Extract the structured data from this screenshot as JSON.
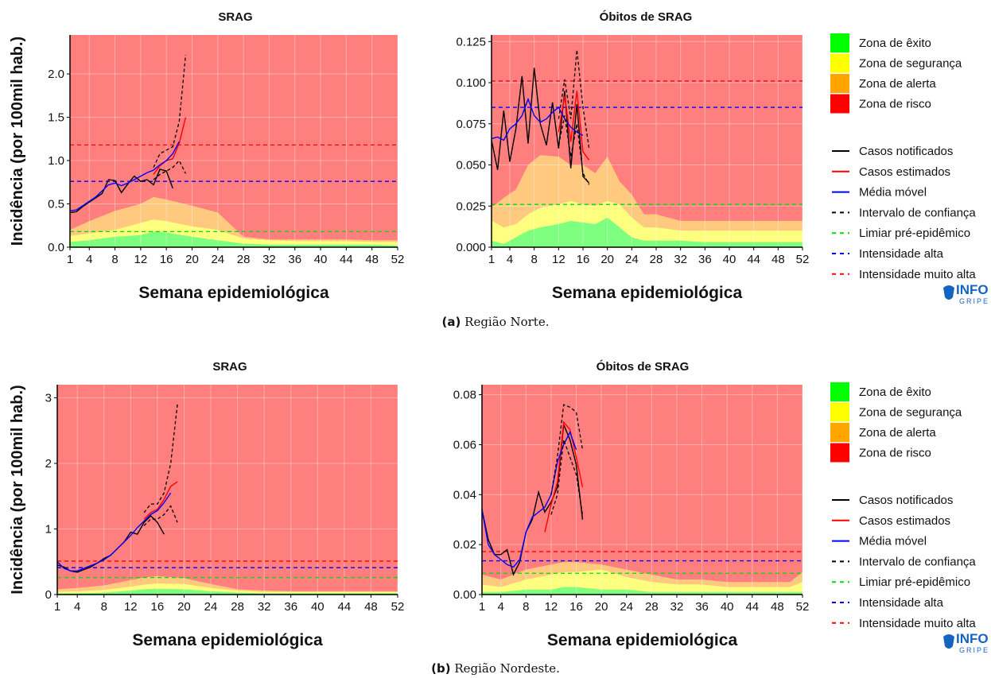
{
  "colors": {
    "risk_bg": "#ff7f7f",
    "alert": "#ffca7f",
    "safety": "#ffff7f",
    "success": "#7fff7f",
    "notified": "#000000",
    "estimated": "#ff0000",
    "moving_avg": "#0000ff",
    "ci": "#000000",
    "pre_epidemic": "#00dd00",
    "high": "#0000ff",
    "very_high": "#ff0000"
  },
  "legend": {
    "zones": [
      {
        "label": "Zona de êxito",
        "color": "#00ff00"
      },
      {
        "label": "Zona de segurança",
        "color": "#ffff00"
      },
      {
        "label": "Zona de alerta",
        "color": "#ffa500"
      },
      {
        "label": "Zona de risco",
        "color": "#ff0000"
      }
    ],
    "lines": [
      {
        "label": "Casos notificados",
        "color": "#000000",
        "dash": false
      },
      {
        "label": "Casos estimados",
        "color": "#ff0000",
        "dash": false
      },
      {
        "label": "Média móvel",
        "color": "#0000ff",
        "dash": false
      },
      {
        "label": "Intervalo de confiança",
        "color": "#000000",
        "dash": true
      },
      {
        "label": "Limiar pré-epidêmico",
        "color": "#00dd00",
        "dash": true
      },
      {
        "label": "Intensidade alta",
        "color": "#0000ff",
        "dash": true
      },
      {
        "label": "Intensidade muito alta",
        "color": "#ff0000",
        "dash": true
      }
    ],
    "logo": "INFO GRIPE"
  },
  "captions": [
    {
      "tag": "(a)",
      "text": "Região Norte."
    },
    {
      "tag": "(b)",
      "text": "Região Nordeste."
    }
  ],
  "chart_data": [
    {
      "type": "line",
      "title": "SRAG",
      "xlabel": "Semana epidemiológica",
      "ylabel": "Incidência (por 100mil hab.)",
      "xlim": [
        1,
        52
      ],
      "ylim": [
        0,
        2.45
      ],
      "xticks": [
        1,
        4,
        8,
        12,
        16,
        20,
        24,
        28,
        32,
        36,
        40,
        44,
        48,
        52
      ],
      "yticks": [
        0.0,
        0.5,
        1.0,
        1.5,
        2.0
      ],
      "ytick_labels": [
        "0.0",
        "0.5",
        "1.0",
        "1.5",
        "2.0"
      ],
      "thresholds": {
        "pre_epidemic": 0.18,
        "high": 0.76,
        "very_high": 1.18
      },
      "zone_weeks": [
        1,
        4,
        8,
        12,
        14,
        16,
        20,
        24,
        28,
        32,
        36,
        40,
        44,
        48,
        52
      ],
      "zone_success": [
        0.06,
        0.08,
        0.12,
        0.14,
        0.18,
        0.17,
        0.12,
        0.08,
        0.04,
        0.03,
        0.03,
        0.03,
        0.03,
        0.03,
        0.02
      ],
      "zone_safety": [
        0.13,
        0.16,
        0.2,
        0.28,
        0.32,
        0.3,
        0.24,
        0.2,
        0.1,
        0.08,
        0.07,
        0.07,
        0.07,
        0.06,
        0.06
      ],
      "zone_alert": [
        0.2,
        0.3,
        0.42,
        0.5,
        0.58,
        0.55,
        0.48,
        0.4,
        0.12,
        0.09,
        0.09,
        0.09,
        0.09,
        0.08,
        0.08
      ],
      "series": [
        {
          "name": "Casos notificados",
          "x": [
            1,
            2,
            3,
            4,
            5,
            6,
            7,
            8,
            9,
            10,
            11,
            12,
            13,
            14,
            15,
            16,
            17
          ],
          "y": [
            0.4,
            0.41,
            0.47,
            0.52,
            0.57,
            0.62,
            0.78,
            0.77,
            0.63,
            0.73,
            0.82,
            0.76,
            0.78,
            0.72,
            0.9,
            0.88,
            0.68
          ]
        },
        {
          "name": "Casos estimados",
          "x": [
            14,
            15,
            16,
            17,
            18,
            19
          ],
          "y": [
            0.84,
            0.94,
            1.0,
            1.02,
            1.2,
            1.5
          ]
        },
        {
          "name": "Média móvel",
          "x": [
            1,
            2,
            3,
            4,
            5,
            6,
            7,
            8,
            9,
            10,
            11,
            12,
            13,
            14,
            15,
            16,
            17,
            18
          ],
          "y": [
            0.42,
            0.43,
            0.48,
            0.53,
            0.58,
            0.65,
            0.72,
            0.74,
            0.71,
            0.74,
            0.78,
            0.82,
            0.86,
            0.89,
            0.95,
            1.0,
            1.08,
            1.22
          ]
        },
        {
          "name": "IC superior",
          "x": [
            14,
            15,
            16,
            17,
            18,
            19
          ],
          "y": [
            0.92,
            1.08,
            1.12,
            1.16,
            1.45,
            2.22
          ]
        },
        {
          "name": "IC inferior",
          "x": [
            14,
            15,
            16,
            17,
            18,
            19
          ],
          "y": [
            0.78,
            0.84,
            0.88,
            0.92,
            1.0,
            0.85
          ]
        }
      ]
    },
    {
      "type": "line",
      "title": "Óbitos de SRAG",
      "xlabel": "Semana epidemiológica",
      "ylabel": "",
      "xlim": [
        1,
        52
      ],
      "ylim": [
        0,
        0.129
      ],
      "xticks": [
        1,
        4,
        8,
        12,
        16,
        20,
        24,
        28,
        32,
        36,
        40,
        44,
        48,
        52
      ],
      "yticks": [
        0.0,
        0.025,
        0.05,
        0.075,
        0.1,
        0.125
      ],
      "ytick_labels": [
        "0.000",
        "0.025",
        "0.050",
        "0.075",
        "0.100",
        "0.125"
      ],
      "thresholds": {
        "pre_epidemic": 0.026,
        "high": 0.085,
        "very_high": 0.101
      },
      "zone_weeks": [
        1,
        3,
        5,
        7,
        9,
        12,
        14,
        16,
        18,
        20,
        22,
        24,
        26,
        28,
        32,
        36,
        40,
        44,
        48,
        52
      ],
      "zone_success": [
        0.004,
        0.002,
        0.006,
        0.01,
        0.012,
        0.014,
        0.016,
        0.015,
        0.014,
        0.018,
        0.012,
        0.006,
        0.004,
        0.004,
        0.004,
        0.003,
        0.003,
        0.003,
        0.003,
        0.003
      ],
      "zone_safety": [
        0.016,
        0.012,
        0.014,
        0.02,
        0.024,
        0.026,
        0.028,
        0.026,
        0.025,
        0.028,
        0.026,
        0.018,
        0.012,
        0.012,
        0.01,
        0.01,
        0.01,
        0.01,
        0.01,
        0.01
      ],
      "zone_alert": [
        0.024,
        0.03,
        0.035,
        0.05,
        0.056,
        0.055,
        0.05,
        0.05,
        0.045,
        0.055,
        0.04,
        0.032,
        0.02,
        0.02,
        0.016,
        0.016,
        0.016,
        0.016,
        0.016,
        0.016
      ],
      "series": [
        {
          "name": "Casos notificados",
          "x": [
            1,
            2,
            3,
            4,
            5,
            6,
            7,
            8,
            9,
            10,
            11,
            12,
            13,
            14,
            15,
            16,
            17
          ],
          "y": [
            0.065,
            0.047,
            0.083,
            0.052,
            0.072,
            0.104,
            0.063,
            0.109,
            0.075,
            0.062,
            0.088,
            0.06,
            0.095,
            0.048,
            0.087,
            0.043,
            0.039
          ]
        },
        {
          "name": "Casos estimados",
          "x": [
            12,
            13,
            14,
            15,
            16,
            17
          ],
          "y": [
            0.07,
            0.092,
            0.064,
            0.095,
            0.058,
            0.053
          ]
        },
        {
          "name": "Média móvel",
          "x": [
            1,
            2,
            3,
            4,
            5,
            6,
            7,
            8,
            9,
            10,
            11,
            12,
            13,
            14,
            15,
            16
          ],
          "y": [
            0.066,
            0.067,
            0.065,
            0.072,
            0.075,
            0.08,
            0.09,
            0.08,
            0.076,
            0.078,
            0.082,
            0.085,
            0.078,
            0.073,
            0.07,
            0.068
          ]
        },
        {
          "name": "IC superior",
          "x": [
            12,
            13,
            14,
            15,
            16,
            17
          ],
          "y": [
            0.078,
            0.102,
            0.078,
            0.12,
            0.085,
            0.06
          ]
        },
        {
          "name": "IC inferior",
          "x": [
            12,
            13,
            14,
            15,
            16,
            17
          ],
          "y": [
            0.062,
            0.08,
            0.055,
            0.075,
            0.045,
            0.038
          ]
        }
      ]
    },
    {
      "type": "line",
      "title": "SRAG",
      "xlabel": "Semana epidemiológica",
      "ylabel": "Incidência (por 100mil hab.)",
      "xlim": [
        1,
        52
      ],
      "ylim": [
        0,
        3.2
      ],
      "xticks": [
        1,
        4,
        8,
        12,
        16,
        20,
        24,
        28,
        32,
        36,
        40,
        44,
        48,
        52
      ],
      "yticks": [
        0,
        1,
        2,
        3
      ],
      "ytick_labels": [
        "0",
        "1",
        "2",
        "3"
      ],
      "thresholds": {
        "pre_epidemic": 0.26,
        "high": 0.41,
        "very_high": 0.51
      },
      "zone_weeks": [
        1,
        4,
        8,
        12,
        14,
        16,
        20,
        24,
        28,
        32,
        36,
        40,
        44,
        48,
        52
      ],
      "zone_success": [
        0.02,
        0.02,
        0.03,
        0.06,
        0.08,
        0.09,
        0.08,
        0.05,
        0.03,
        0.02,
        0.02,
        0.02,
        0.02,
        0.02,
        0.02
      ],
      "zone_safety": [
        0.04,
        0.05,
        0.07,
        0.12,
        0.15,
        0.17,
        0.16,
        0.1,
        0.06,
        0.04,
        0.04,
        0.04,
        0.04,
        0.04,
        0.04
      ],
      "zone_alert": [
        0.08,
        0.1,
        0.14,
        0.22,
        0.26,
        0.28,
        0.25,
        0.16,
        0.08,
        0.06,
        0.05,
        0.05,
        0.05,
        0.05,
        0.05
      ],
      "series": [
        {
          "name": "Casos notificados",
          "x": [
            1,
            2,
            3,
            4,
            5,
            6,
            7,
            8,
            9,
            10,
            11,
            12,
            13,
            14,
            15,
            16,
            17
          ],
          "y": [
            0.45,
            0.42,
            0.36,
            0.34,
            0.38,
            0.42,
            0.48,
            0.55,
            0.6,
            0.7,
            0.8,
            0.95,
            0.92,
            1.1,
            1.2,
            1.1,
            0.92
          ]
        },
        {
          "name": "Casos estimados",
          "x": [
            14,
            15,
            16,
            17,
            18,
            19
          ],
          "y": [
            1.15,
            1.25,
            1.3,
            1.45,
            1.65,
            1.72
          ]
        },
        {
          "name": "Média móvel",
          "x": [
            1,
            2,
            3,
            4,
            5,
            6,
            7,
            8,
            9,
            10,
            11,
            12,
            13,
            14,
            15,
            16,
            17,
            18
          ],
          "y": [
            0.5,
            0.4,
            0.36,
            0.36,
            0.4,
            0.44,
            0.48,
            0.53,
            0.6,
            0.7,
            0.8,
            0.9,
            1.02,
            1.12,
            1.22,
            1.28,
            1.4,
            1.55
          ]
        },
        {
          "name": "IC superior",
          "x": [
            14,
            15,
            16,
            17,
            18,
            19
          ],
          "y": [
            1.25,
            1.38,
            1.38,
            1.55,
            2.0,
            2.9
          ]
        },
        {
          "name": "IC inferior",
          "x": [
            14,
            15,
            16,
            17,
            18,
            19
          ],
          "y": [
            1.05,
            1.15,
            1.15,
            1.22,
            1.35,
            1.1
          ]
        }
      ]
    },
    {
      "type": "line",
      "title": "Óbitos de SRAG",
      "xlabel": "Semana epidemiológica",
      "ylabel": "",
      "xlim": [
        1,
        52
      ],
      "ylim": [
        0,
        0.084
      ],
      "xticks": [
        1,
        4,
        8,
        12,
        16,
        20,
        24,
        28,
        32,
        36,
        40,
        44,
        48,
        52
      ],
      "yticks": [
        0.0,
        0.02,
        0.04,
        0.06,
        0.08
      ],
      "ytick_labels": [
        "0.00",
        "0.02",
        "0.04",
        "0.06",
        "0.08"
      ],
      "thresholds": {
        "pre_epidemic": 0.0085,
        "high": 0.0135,
        "very_high": 0.0172
      },
      "zone_weeks": [
        1,
        4,
        8,
        12,
        14,
        16,
        20,
        24,
        28,
        32,
        36,
        40,
        44,
        48,
        50,
        52
      ],
      "zone_success": [
        0.001,
        0.001,
        0.002,
        0.002,
        0.003,
        0.003,
        0.002,
        0.002,
        0.001,
        0.001,
        0.001,
        0.001,
        0.001,
        0.001,
        0.001,
        0.001
      ],
      "zone_safety": [
        0.004,
        0.003,
        0.006,
        0.008,
        0.009,
        0.009,
        0.01,
        0.007,
        0.005,
        0.004,
        0.004,
        0.003,
        0.003,
        0.003,
        0.003,
        0.005
      ],
      "zone_alert": [
        0.008,
        0.006,
        0.01,
        0.012,
        0.013,
        0.013,
        0.012,
        0.01,
        0.008,
        0.006,
        0.006,
        0.005,
        0.005,
        0.005,
        0.005,
        0.009
      ],
      "series": [
        {
          "name": "Casos notificados",
          "x": [
            1,
            2,
            3,
            4,
            5,
            6,
            7,
            8,
            9,
            10,
            11,
            12,
            13,
            14,
            15,
            16,
            17
          ],
          "y": [
            0.034,
            0.022,
            0.016,
            0.016,
            0.018,
            0.008,
            0.013,
            0.025,
            0.03,
            0.041,
            0.033,
            0.037,
            0.043,
            0.068,
            0.062,
            0.052,
            0.03
          ]
        },
        {
          "name": "Casos estimados",
          "x": [
            11,
            12,
            13,
            14,
            15,
            16,
            17
          ],
          "y": [
            0.025,
            0.036,
            0.045,
            0.069,
            0.066,
            0.055,
            0.043
          ]
        },
        {
          "name": "Média móvel",
          "x": [
            1,
            2,
            3,
            4,
            5,
            6,
            7,
            8,
            9,
            10,
            11,
            12,
            13,
            14,
            15,
            16
          ],
          "y": [
            0.034,
            0.02,
            0.016,
            0.014,
            0.012,
            0.011,
            0.014,
            0.025,
            0.031,
            0.033,
            0.035,
            0.04,
            0.053,
            0.06,
            0.065,
            0.058
          ]
        },
        {
          "name": "IC superior",
          "x": [
            12,
            13,
            14,
            15,
            16,
            17
          ],
          "y": [
            0.04,
            0.055,
            0.076,
            0.075,
            0.073,
            0.058
          ]
        },
        {
          "name": "IC inferior",
          "x": [
            12,
            13,
            14,
            15,
            16,
            17
          ],
          "y": [
            0.032,
            0.04,
            0.062,
            0.055,
            0.048,
            0.032
          ]
        }
      ]
    }
  ]
}
